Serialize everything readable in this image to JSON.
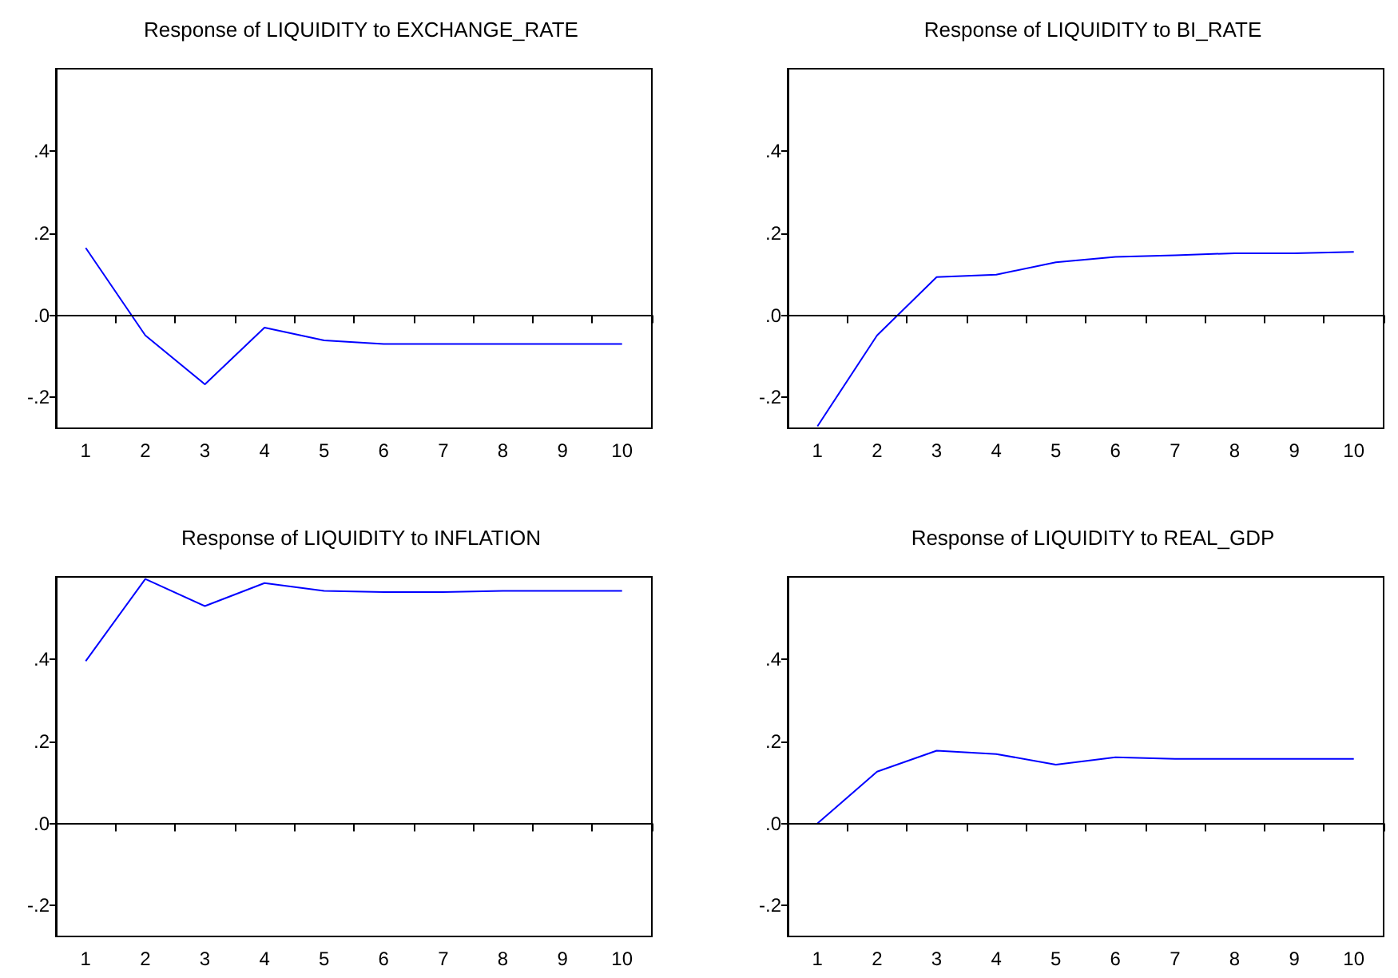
{
  "chart_data": [
    {
      "type": "line",
      "title": "Response of LIQUIDITY to EXCHANGE_RATE",
      "categories": [
        "1",
        "2",
        "3",
        "4",
        "5",
        "6",
        "7",
        "8",
        "9",
        "10"
      ],
      "series": [
        {
          "color": "#0000ff",
          "values": [
            0.164,
            -0.049,
            -0.168,
            -0.03,
            -0.061,
            -0.07,
            -0.07,
            -0.07,
            -0.07,
            -0.07
          ]
        }
      ],
      "ylim": [
        -0.275,
        0.6
      ],
      "yticks": [
        {
          "value": -0.2,
          "label": "-.2"
        },
        {
          "value": 0,
          "label": ".0"
        },
        {
          "value": 0.2,
          "label": ".2"
        },
        {
          "value": 0.4,
          "label": ".4"
        }
      ],
      "ref_lines": [
        {
          "axis": "y",
          "value": 0,
          "color": "#000000"
        }
      ],
      "marker": "none"
    },
    {
      "type": "line",
      "title": "Response of LIQUIDITY to BI_RATE",
      "categories": [
        "1",
        "2",
        "3",
        "4",
        "5",
        "6",
        "7",
        "8",
        "9",
        "10"
      ],
      "series": [
        {
          "color": "#0000ff",
          "values": [
            -0.27,
            -0.049,
            0.093,
            0.099,
            0.129,
            0.142,
            0.146,
            0.151,
            0.151,
            0.154
          ]
        }
      ],
      "ylim": [
        -0.275,
        0.6
      ],
      "yticks": [
        {
          "value": -0.2,
          "label": "-.2"
        },
        {
          "value": 0,
          "label": ".0"
        },
        {
          "value": 0.2,
          "label": ".2"
        },
        {
          "value": 0.4,
          "label": ".4"
        }
      ],
      "ref_lines": [
        {
          "axis": "y",
          "value": 0,
          "color": "#000000"
        }
      ],
      "marker": "none"
    },
    {
      "type": "line",
      "title": "Response of LIQUIDITY to INFLATION",
      "categories": [
        "1",
        "2",
        "3",
        "4",
        "5",
        "6",
        "7",
        "8",
        "9",
        "10"
      ],
      "series": [
        {
          "color": "#0000ff",
          "values": [
            0.395,
            0.595,
            0.529,
            0.585,
            0.566,
            0.563,
            0.563,
            0.566,
            0.566,
            0.566
          ]
        }
      ],
      "ylim": [
        -0.275,
        0.6
      ],
      "yticks": [
        {
          "value": -0.2,
          "label": "-.2"
        },
        {
          "value": 0,
          "label": ".0"
        },
        {
          "value": 0.2,
          "label": ".2"
        },
        {
          "value": 0.4,
          "label": ".4"
        }
      ],
      "ref_lines": [
        {
          "axis": "y",
          "value": 0,
          "color": "#000000"
        }
      ],
      "marker": "none"
    },
    {
      "type": "line",
      "title": "Response of LIQUIDITY to REAL_GDP",
      "categories": [
        "1",
        "2",
        "3",
        "4",
        "5",
        "6",
        "7",
        "8",
        "9",
        "10"
      ],
      "series": [
        {
          "color": "#0000ff",
          "values": [
            0.0,
            0.126,
            0.177,
            0.169,
            0.143,
            0.161,
            0.157,
            0.157,
            0.157,
            0.157
          ]
        }
      ],
      "ylim": [
        -0.275,
        0.6
      ],
      "yticks": [
        {
          "value": -0.2,
          "label": "-.2"
        },
        {
          "value": 0,
          "label": ".0"
        },
        {
          "value": 0.2,
          "label": ".2"
        },
        {
          "value": 0.4,
          "label": ".4"
        }
      ],
      "ref_lines": [
        {
          "axis": "y",
          "value": 0,
          "color": "#000000"
        }
      ],
      "marker": "none"
    }
  ]
}
